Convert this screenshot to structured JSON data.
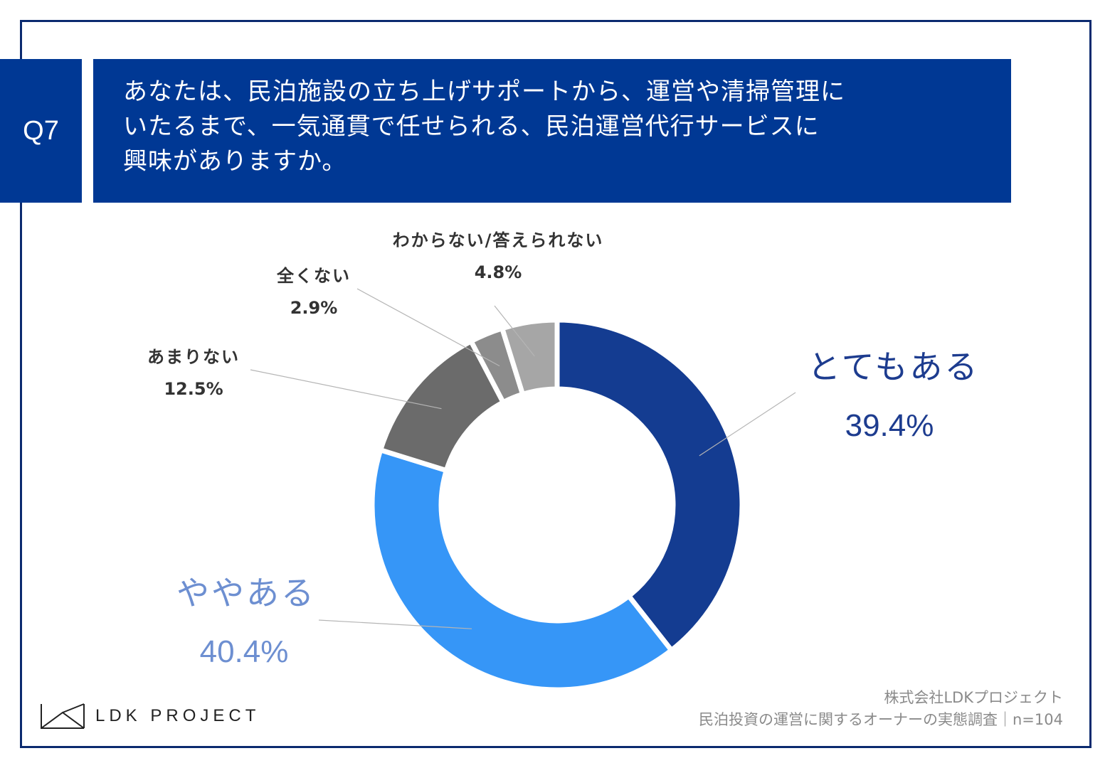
{
  "question": {
    "badge": "Q7",
    "text": "あなたは、民泊施設の立ち上げサポートから、運営や清掃管理に\nいたるまで、一気通貫で任せられる、民泊運営代行サービスに\n興味がありますか。"
  },
  "chart_data": {
    "type": "pie",
    "subtype": "donut",
    "direction": "clockwise-from-top",
    "slices": [
      {
        "label": "とてもある",
        "value": 39.4,
        "display": "39.4%",
        "color": "#143c91"
      },
      {
        "label": "ややある",
        "value": 40.4,
        "display": "40.4%",
        "color": "#3696f7"
      },
      {
        "label": "あまりない",
        "value": 12.5,
        "display": "12.5%",
        "color": "#6b6b6b"
      },
      {
        "label": "全くない",
        "value": 2.9,
        "display": "2.9%",
        "color": "#8c8c8c"
      },
      {
        "label": "わからない/答えられない",
        "value": 4.8,
        "display": "4.8%",
        "color": "#a6a6a6"
      }
    ]
  },
  "logo": {
    "text": "LDK PROJECT"
  },
  "source": {
    "line1": "株式会社LDKプロジェクト",
    "line2": "民泊投資の運営に関するオーナーの実態調査｜n=104"
  }
}
